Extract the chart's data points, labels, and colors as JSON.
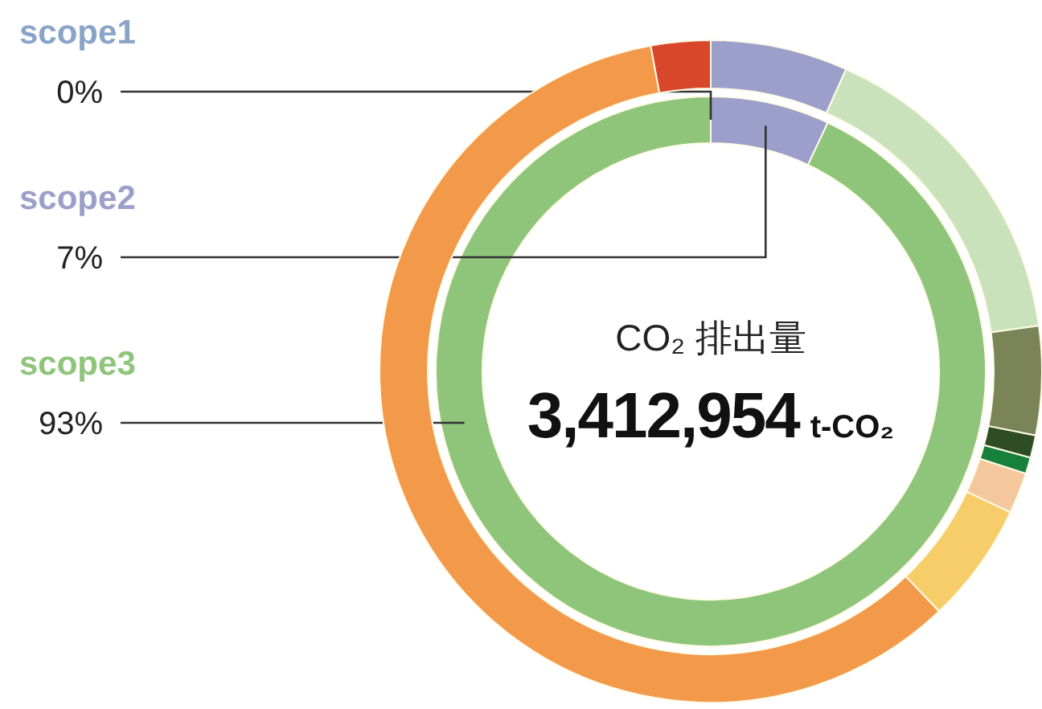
{
  "chart_data": [
    {
      "type": "donut",
      "title": "CO₂ 排出量",
      "subtitle": "3,412,954 t-CO₂",
      "categories": [
        "scope1",
        "scope2",
        "scope3"
      ],
      "values": [
        0,
        7,
        93
      ],
      "value_labels": [
        "0%",
        "7%",
        "93%"
      ],
      "colors": [
        "#8aa4c8",
        "#9b9fc9",
        "#8fc57b"
      ]
    },
    {
      "type": "donut",
      "categories": [
        null,
        null,
        null,
        null,
        null,
        null,
        null,
        null,
        null
      ],
      "values": [
        6.7,
        16.1,
        5.3,
        1.1,
        0.8,
        2.0,
        5.9,
        59.2,
        2.9
      ],
      "colors": [
        "#9b9fc9",
        "#c9e2bc",
        "#7b8457",
        "#2f4d24",
        "#17803a",
        "#f4c79c",
        "#f6cd68",
        "#f2994a",
        "#d9472b"
      ]
    }
  ]
}
